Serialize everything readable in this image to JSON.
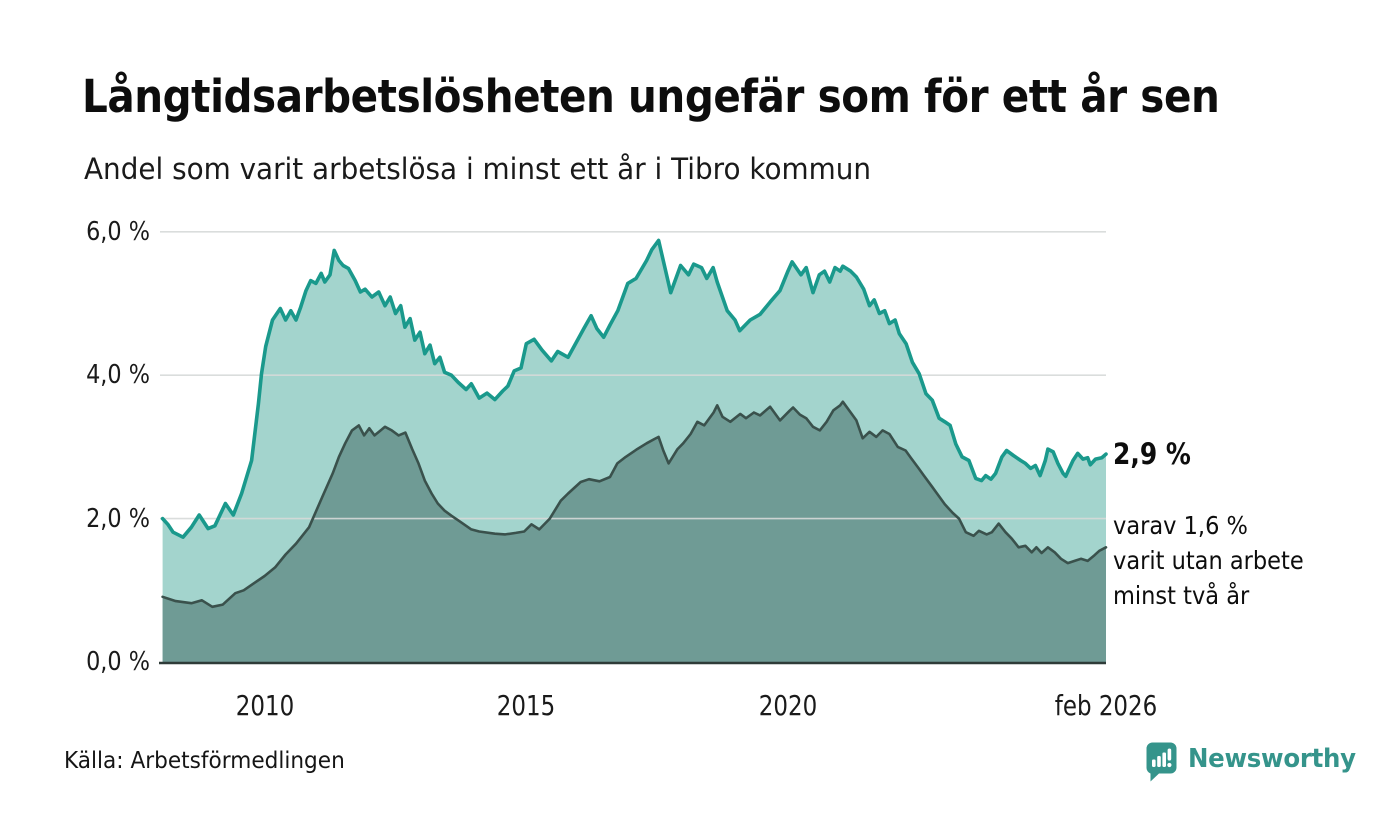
{
  "header": {
    "title": "Långtidsarbetslösheten ungefär som för ett år sen",
    "subtitle": "Andel som varit arbetslösa i minst ett år i Tibro kommun"
  },
  "annotations": {
    "latest_value": "2,9 %",
    "secondary": "varav 1,6 %\nvarit utan arbete\nminst två år"
  },
  "footer": {
    "source": "Källa: Arbetsförmedlingen",
    "logo_text": "Newsworthy"
  },
  "colors": {
    "accent_teal": "#1a998c",
    "light_fill": "#a3d4cd",
    "dark_fill": "#6f9b95",
    "dark_stroke": "#3a514c",
    "gridline": "#d7dad9",
    "baseline": "#2e3b38",
    "logo_teal": "#35948b"
  },
  "chart_data": {
    "type": "area",
    "title": "Långtidsarbetslösheten ungefär som för ett år sen",
    "subtitle": "Andel som varit arbetslösa i minst ett år i Tibro kommun",
    "unit": "%",
    "grid": true,
    "legend": "none",
    "x_axis": {
      "lim": [
        2008.0,
        2026.08
      ],
      "ticks": [
        {
          "value": 2010,
          "label": "2010"
        },
        {
          "value": 2015,
          "label": "2015"
        },
        {
          "value": 2020,
          "label": "2020"
        },
        {
          "value": 2026.08,
          "label": "feb 2026"
        }
      ]
    },
    "y_axis": {
      "lim": [
        0,
        6.2
      ],
      "ticks": [
        {
          "value": 0,
          "label": "0,0 %"
        },
        {
          "value": 2,
          "label": "2,0 %"
        },
        {
          "value": 4,
          "label": "4,0 %"
        },
        {
          "value": 6,
          "label": "6,0 %"
        }
      ]
    },
    "gridline_color": "#d7dad9",
    "baseline_color": "#2e3b38",
    "series": [
      {
        "name": "Andel arbetslösa minst ett år",
        "latest_label": "2,9 %",
        "latest_value": 2.9,
        "stroke": "#1a998c",
        "stroke_width": 3.6,
        "fill": "#a3d4cd",
        "points": [
          [
            2008.05,
            2.0
          ],
          [
            2008.15,
            1.92
          ],
          [
            2008.25,
            1.81
          ],
          [
            2008.44,
            1.74
          ],
          [
            2008.6,
            1.88
          ],
          [
            2008.75,
            2.05
          ],
          [
            2008.92,
            1.86
          ],
          [
            2009.05,
            1.9
          ],
          [
            2009.25,
            2.21
          ],
          [
            2009.4,
            2.05
          ],
          [
            2009.56,
            2.35
          ],
          [
            2009.75,
            2.81
          ],
          [
            2009.88,
            3.6
          ],
          [
            2009.94,
            4.02
          ],
          [
            2010.02,
            4.4
          ],
          [
            2010.15,
            4.77
          ],
          [
            2010.3,
            4.93
          ],
          [
            2010.4,
            4.77
          ],
          [
            2010.5,
            4.9
          ],
          [
            2010.6,
            4.77
          ],
          [
            2010.69,
            4.95
          ],
          [
            2010.79,
            5.18
          ],
          [
            2010.88,
            5.32
          ],
          [
            2010.98,
            5.28
          ],
          [
            2011.08,
            5.42
          ],
          [
            2011.15,
            5.3
          ],
          [
            2011.25,
            5.4
          ],
          [
            2011.33,
            5.74
          ],
          [
            2011.42,
            5.6
          ],
          [
            2011.5,
            5.53
          ],
          [
            2011.6,
            5.49
          ],
          [
            2011.73,
            5.32
          ],
          [
            2011.83,
            5.16
          ],
          [
            2011.92,
            5.2
          ],
          [
            2012.05,
            5.09
          ],
          [
            2012.18,
            5.16
          ],
          [
            2012.3,
            4.97
          ],
          [
            2012.4,
            5.09
          ],
          [
            2012.5,
            4.86
          ],
          [
            2012.6,
            4.97
          ],
          [
            2012.68,
            4.67
          ],
          [
            2012.78,
            4.79
          ],
          [
            2012.87,
            4.49
          ],
          [
            2012.97,
            4.6
          ],
          [
            2013.06,
            4.3
          ],
          [
            2013.16,
            4.42
          ],
          [
            2013.25,
            4.16
          ],
          [
            2013.35,
            4.25
          ],
          [
            2013.44,
            4.04
          ],
          [
            2013.57,
            4.0
          ],
          [
            2013.7,
            3.9
          ],
          [
            2013.85,
            3.8
          ],
          [
            2013.95,
            3.88
          ],
          [
            2014.1,
            3.68
          ],
          [
            2014.25,
            3.75
          ],
          [
            2014.4,
            3.66
          ],
          [
            2014.55,
            3.78
          ],
          [
            2014.65,
            3.85
          ],
          [
            2014.77,
            4.06
          ],
          [
            2014.9,
            4.1
          ],
          [
            2015.0,
            4.44
          ],
          [
            2015.15,
            4.5
          ],
          [
            2015.3,
            4.35
          ],
          [
            2015.48,
            4.2
          ],
          [
            2015.6,
            4.33
          ],
          [
            2015.8,
            4.25
          ],
          [
            2015.95,
            4.45
          ],
          [
            2016.1,
            4.65
          ],
          [
            2016.24,
            4.83
          ],
          [
            2016.35,
            4.65
          ],
          [
            2016.48,
            4.53
          ],
          [
            2016.6,
            4.7
          ],
          [
            2016.75,
            4.9
          ],
          [
            2016.94,
            5.28
          ],
          [
            2017.1,
            5.35
          ],
          [
            2017.3,
            5.6
          ],
          [
            2017.4,
            5.75
          ],
          [
            2017.53,
            5.88
          ],
          [
            2017.65,
            5.5
          ],
          [
            2017.76,
            5.15
          ],
          [
            2017.95,
            5.53
          ],
          [
            2018.1,
            5.4
          ],
          [
            2018.2,
            5.55
          ],
          [
            2018.35,
            5.5
          ],
          [
            2018.45,
            5.35
          ],
          [
            2018.57,
            5.5
          ],
          [
            2018.65,
            5.3
          ],
          [
            2018.84,
            4.9
          ],
          [
            2018.99,
            4.77
          ],
          [
            2019.08,
            4.62
          ],
          [
            2019.28,
            4.77
          ],
          [
            2019.47,
            4.85
          ],
          [
            2019.66,
            5.02
          ],
          [
            2019.85,
            5.18
          ],
          [
            2020.0,
            5.45
          ],
          [
            2020.08,
            5.58
          ],
          [
            2020.25,
            5.4
          ],
          [
            2020.35,
            5.5
          ],
          [
            2020.48,
            5.15
          ],
          [
            2020.6,
            5.4
          ],
          [
            2020.7,
            5.45
          ],
          [
            2020.8,
            5.3
          ],
          [
            2020.9,
            5.5
          ],
          [
            2021.0,
            5.45
          ],
          [
            2021.05,
            5.52
          ],
          [
            2021.2,
            5.45
          ],
          [
            2021.31,
            5.37
          ],
          [
            2021.45,
            5.2
          ],
          [
            2021.56,
            4.97
          ],
          [
            2021.65,
            5.05
          ],
          [
            2021.75,
            4.86
          ],
          [
            2021.85,
            4.9
          ],
          [
            2021.94,
            4.72
          ],
          [
            2022.05,
            4.77
          ],
          [
            2022.13,
            4.58
          ],
          [
            2022.26,
            4.44
          ],
          [
            2022.38,
            4.18
          ],
          [
            2022.51,
            4.02
          ],
          [
            2022.64,
            3.74
          ],
          [
            2022.76,
            3.65
          ],
          [
            2022.89,
            3.4
          ],
          [
            2023.0,
            3.35
          ],
          [
            2023.1,
            3.3
          ],
          [
            2023.21,
            3.04
          ],
          [
            2023.33,
            2.86
          ],
          [
            2023.46,
            2.81
          ],
          [
            2023.59,
            2.56
          ],
          [
            2023.7,
            2.53
          ],
          [
            2023.78,
            2.6
          ],
          [
            2023.88,
            2.55
          ],
          [
            2023.97,
            2.63
          ],
          [
            2024.09,
            2.86
          ],
          [
            2024.18,
            2.95
          ],
          [
            2024.31,
            2.88
          ],
          [
            2024.45,
            2.81
          ],
          [
            2024.54,
            2.77
          ],
          [
            2024.64,
            2.7
          ],
          [
            2024.73,
            2.74
          ],
          [
            2024.82,
            2.6
          ],
          [
            2024.92,
            2.81
          ],
          [
            2024.97,
            2.97
          ],
          [
            2025.07,
            2.93
          ],
          [
            2025.16,
            2.77
          ],
          [
            2025.26,
            2.63
          ],
          [
            2025.31,
            2.59
          ],
          [
            2025.45,
            2.81
          ],
          [
            2025.54,
            2.91
          ],
          [
            2025.64,
            2.83
          ],
          [
            2025.73,
            2.85
          ],
          [
            2025.78,
            2.75
          ],
          [
            2025.88,
            2.83
          ],
          [
            2026.0,
            2.85
          ],
          [
            2026.08,
            2.9
          ]
        ]
      },
      {
        "name": "varav utan arbete minst två år",
        "latest_label": "1,6 %",
        "latest_value": 1.6,
        "stroke": "#3a514c",
        "stroke_width": 2.6,
        "fill": "#6f9b95",
        "points": [
          [
            2008.05,
            0.91
          ],
          [
            2008.3,
            0.85
          ],
          [
            2008.6,
            0.82
          ],
          [
            2008.8,
            0.86
          ],
          [
            2009.0,
            0.77
          ],
          [
            2009.2,
            0.8
          ],
          [
            2009.44,
            0.96
          ],
          [
            2009.6,
            1.0
          ],
          [
            2009.8,
            1.1
          ],
          [
            2010.0,
            1.2
          ],
          [
            2010.2,
            1.32
          ],
          [
            2010.4,
            1.5
          ],
          [
            2010.6,
            1.65
          ],
          [
            2010.85,
            1.88
          ],
          [
            2011.1,
            2.3
          ],
          [
            2011.3,
            2.63
          ],
          [
            2011.42,
            2.86
          ],
          [
            2011.54,
            3.05
          ],
          [
            2011.67,
            3.23
          ],
          [
            2011.8,
            3.3
          ],
          [
            2011.9,
            3.16
          ],
          [
            2012.0,
            3.26
          ],
          [
            2012.1,
            3.16
          ],
          [
            2012.3,
            3.28
          ],
          [
            2012.43,
            3.23
          ],
          [
            2012.56,
            3.16
          ],
          [
            2012.69,
            3.2
          ],
          [
            2012.82,
            2.97
          ],
          [
            2012.94,
            2.77
          ],
          [
            2013.06,
            2.53
          ],
          [
            2013.19,
            2.35
          ],
          [
            2013.31,
            2.21
          ],
          [
            2013.44,
            2.11
          ],
          [
            2013.57,
            2.04
          ],
          [
            2013.75,
            1.95
          ],
          [
            2013.95,
            1.85
          ],
          [
            2014.1,
            1.82
          ],
          [
            2014.4,
            1.79
          ],
          [
            2014.6,
            1.78
          ],
          [
            2014.8,
            1.8
          ],
          [
            2014.96,
            1.82
          ],
          [
            2015.1,
            1.92
          ],
          [
            2015.25,
            1.85
          ],
          [
            2015.45,
            2.0
          ],
          [
            2015.66,
            2.25
          ],
          [
            2015.8,
            2.35
          ],
          [
            2016.04,
            2.51
          ],
          [
            2016.2,
            2.55
          ],
          [
            2016.4,
            2.52
          ],
          [
            2016.6,
            2.58
          ],
          [
            2016.74,
            2.77
          ],
          [
            2016.9,
            2.86
          ],
          [
            2017.12,
            2.97
          ],
          [
            2017.3,
            3.05
          ],
          [
            2017.45,
            3.11
          ],
          [
            2017.53,
            3.14
          ],
          [
            2017.62,
            2.95
          ],
          [
            2017.72,
            2.77
          ],
          [
            2017.89,
            2.97
          ],
          [
            2018.0,
            3.05
          ],
          [
            2018.14,
            3.18
          ],
          [
            2018.27,
            3.35
          ],
          [
            2018.4,
            3.3
          ],
          [
            2018.58,
            3.48
          ],
          [
            2018.65,
            3.58
          ],
          [
            2018.75,
            3.42
          ],
          [
            2018.9,
            3.35
          ],
          [
            2019.09,
            3.46
          ],
          [
            2019.2,
            3.4
          ],
          [
            2019.35,
            3.48
          ],
          [
            2019.47,
            3.44
          ],
          [
            2019.66,
            3.56
          ],
          [
            2019.85,
            3.37
          ],
          [
            2020.04,
            3.51
          ],
          [
            2020.1,
            3.55
          ],
          [
            2020.23,
            3.45
          ],
          [
            2020.35,
            3.4
          ],
          [
            2020.48,
            3.28
          ],
          [
            2020.61,
            3.23
          ],
          [
            2020.74,
            3.35
          ],
          [
            2020.87,
            3.51
          ],
          [
            2021.0,
            3.58
          ],
          [
            2021.05,
            3.63
          ],
          [
            2021.18,
            3.5
          ],
          [
            2021.31,
            3.37
          ],
          [
            2021.43,
            3.12
          ],
          [
            2021.56,
            3.21
          ],
          [
            2021.69,
            3.14
          ],
          [
            2021.81,
            3.23
          ],
          [
            2021.94,
            3.18
          ],
          [
            2022.1,
            3.0
          ],
          [
            2022.25,
            2.95
          ],
          [
            2022.35,
            2.85
          ],
          [
            2022.5,
            2.7
          ],
          [
            2022.6,
            2.6
          ],
          [
            2022.75,
            2.45
          ],
          [
            2022.85,
            2.35
          ],
          [
            2023.0,
            2.2
          ],
          [
            2023.15,
            2.08
          ],
          [
            2023.27,
            2.0
          ],
          [
            2023.4,
            1.81
          ],
          [
            2023.55,
            1.76
          ],
          [
            2023.65,
            1.83
          ],
          [
            2023.8,
            1.78
          ],
          [
            2023.9,
            1.81
          ],
          [
            2024.03,
            1.93
          ],
          [
            2024.16,
            1.81
          ],
          [
            2024.28,
            1.72
          ],
          [
            2024.41,
            1.6
          ],
          [
            2024.54,
            1.62
          ],
          [
            2024.66,
            1.53
          ],
          [
            2024.75,
            1.6
          ],
          [
            2024.85,
            1.52
          ],
          [
            2024.97,
            1.6
          ],
          [
            2025.1,
            1.53
          ],
          [
            2025.22,
            1.44
          ],
          [
            2025.35,
            1.38
          ],
          [
            2025.48,
            1.41
          ],
          [
            2025.6,
            1.44
          ],
          [
            2025.73,
            1.41
          ],
          [
            2025.86,
            1.49
          ],
          [
            2025.95,
            1.55
          ],
          [
            2026.08,
            1.6
          ]
        ]
      }
    ]
  }
}
